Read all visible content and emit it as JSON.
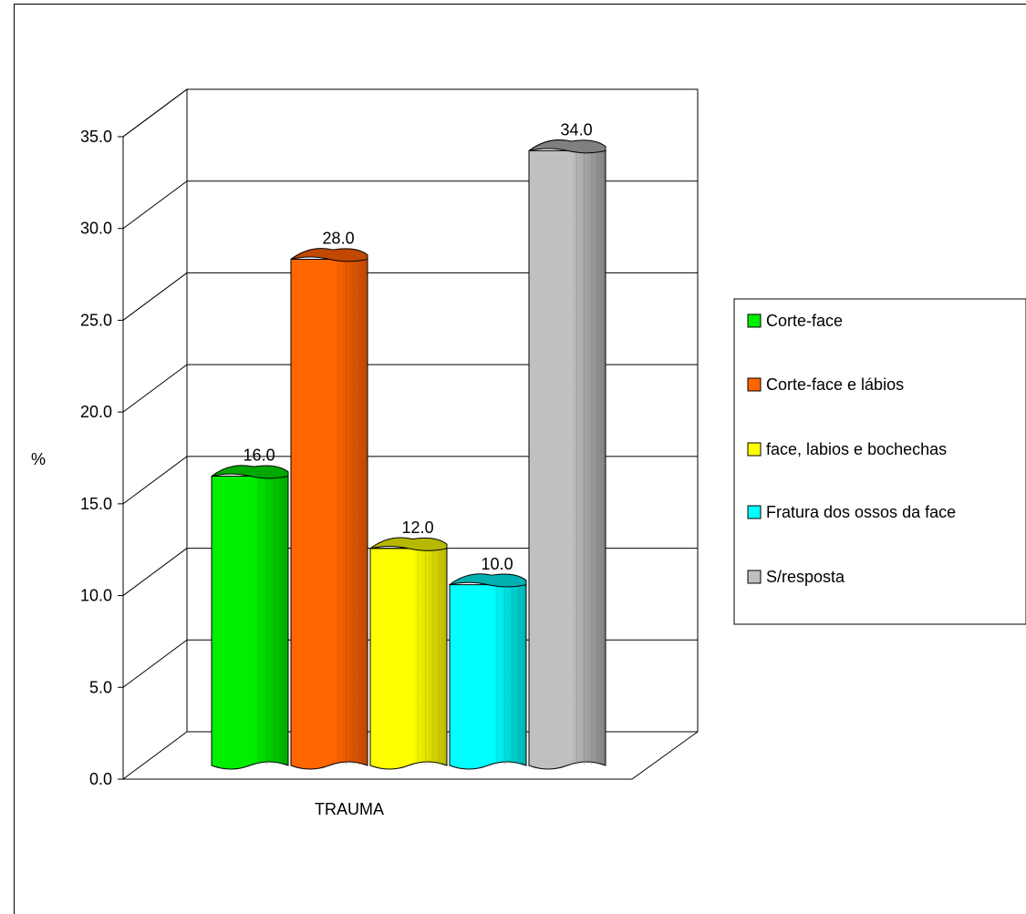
{
  "chart_data": {
    "type": "bar",
    "style": "3d-cylinder",
    "title": "",
    "xlabel": "",
    "ylabel": "%",
    "categories": [
      "TRAUMA"
    ],
    "series": [
      {
        "name": "Corte-face",
        "value": 16.0,
        "label": "16.0",
        "color": "#00ee00",
        "dark": "#00a800"
      },
      {
        "name": "Corte-face e lábios",
        "value": 28.0,
        "label": "28.0",
        "color": "#ff6600",
        "dark": "#c04800"
      },
      {
        "name": "face, labios e bochechas",
        "value": 12.0,
        "label": "12.0",
        "color": "#ffff00",
        "dark": "#b8b800"
      },
      {
        "name": "Fratura dos ossos da face",
        "value": 10.0,
        "label": "10.0",
        "color": "#00ffff",
        "dark": "#00b0b0"
      },
      {
        "name": "S/resposta",
        "value": 34.0,
        "label": "34.0",
        "color": "#c0c0c0",
        "dark": "#808080"
      }
    ],
    "ylim": [
      0,
      35
    ],
    "y_ticks": [
      "0.0",
      "5.0",
      "10.0",
      "15.0",
      "20.0",
      "25.0",
      "30.0",
      "35.0"
    ],
    "grid": true,
    "legend_position": "right"
  }
}
